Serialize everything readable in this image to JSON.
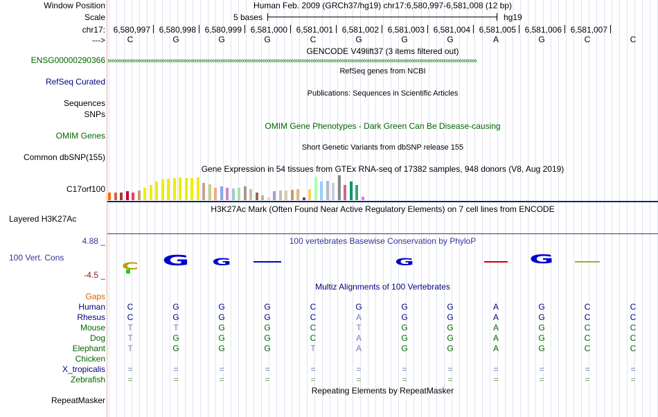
{
  "left_labels": {
    "window_position": "Window Position",
    "scale": "Scale",
    "chrom": "chr17:",
    "arrow": "--->",
    "ensg": "ENSG00000290366",
    "refseq": "RefSeq Curated",
    "sequences": "Sequences",
    "snps": "SNPs",
    "omim": "OMIM Genes",
    "dbsnp": "Common dbSNP(155)",
    "gene": "C17orf100",
    "h3k27ac": "Layered H3K27Ac",
    "cons_max": "4.88 _",
    "cons_name": "100 Vert. Cons",
    "cons_min": "-4.5 _",
    "gaps": "Gaps",
    "species": [
      {
        "name": "Human",
        "color": "#000080"
      },
      {
        "name": "Rhesus",
        "color": "#000080"
      },
      {
        "name": "Mouse",
        "color": "#006400"
      },
      {
        "name": "Dog",
        "color": "#006400"
      },
      {
        "name": "Elephant",
        "color": "#006400"
      },
      {
        "name": "Chicken",
        "color": "#006400"
      },
      {
        "name": "X_tropicalis",
        "color": "#000080"
      },
      {
        "name": "Zebrafish",
        "color": "#006400"
      }
    ],
    "repeatmasker": "RepeatMasker"
  },
  "header": {
    "window_title": "Human Feb. 2009 (GRCh37/hg19)   chr17:6,580,997-6,581,008 (12 bp)",
    "scale_text": "5 bases",
    "assembly": "hg19",
    "positions": [
      "6,580,997",
      "6,580,998",
      "6,580,999",
      "6,581,000",
      "6,581,001",
      "6,581,002",
      "6,581,003",
      "6,581,004",
      "6,581,005",
      "6,581,006",
      "6,581,007"
    ],
    "bases": [
      "C",
      "G",
      "G",
      "G",
      "C",
      "G",
      "G",
      "G",
      "A",
      "G",
      "C",
      "C"
    ]
  },
  "tracks": {
    "gencode": "GENCODE V49lift37 (3 items filtered out)",
    "refseq": "RefSeq genes from NCBI",
    "publications": "Publications: Sequences in Scientific Articles",
    "omim": "OMIM Gene Phenotypes - Dark Green Can Be Disease-causing",
    "dbsnp": "Short Genetic Variants from dbSNP release 155",
    "gtex": "Gene Expression in 54 tissues from GTEx RNA-seq of 17382 samples, 948 donors (V8, Aug 2019)",
    "h3k27ac": "H3K27Ac Mark (Often Found Near Active Regulatory Elements) on 7 cell lines from ENCODE",
    "phylop": "100 vertebrates Basewise Conservation by PhyloP",
    "multiz": "Multiz Alignments of 100 Vertebrates",
    "repeats": "Repeating Elements by RepeatMasker"
  },
  "gtex_levels": [
    0.3,
    0.3,
    0.3,
    0.35,
    0.3,
    0.4,
    0.5,
    0.6,
    0.75,
    0.82,
    0.85,
    0.88,
    0.92,
    0.9,
    0.88,
    0.92,
    0.7,
    0.65,
    0.5,
    0.55,
    0.5,
    0.48,
    0.5,
    0.55,
    0.45,
    0.3,
    0.2,
    0.1,
    0.35,
    0.38,
    0.4,
    0.42,
    0.45,
    0.1,
    0.45,
    0.95,
    0.75,
    0.78,
    0.7,
    1.0,
    0.6,
    0.75,
    0.6,
    0.15
  ],
  "gtex_colors": [
    "#ff6600",
    "#cc6633",
    "#aa3333",
    "#cc0033",
    "#ff3366",
    "#cc9966",
    "#eeee00",
    "#eeee00",
    "#eeee00",
    "#eeee00",
    "#eeee00",
    "#eeee00",
    "#eeee00",
    "#eeee00",
    "#eeee00",
    "#eeee00",
    "#d0a090",
    "#cccc88",
    "#eeaa88",
    "#88aaee",
    "#cc88cc",
    "#99cccc",
    "#aaddaa",
    "#aa9988",
    "#ccbbaa",
    "#996655",
    "#ccaa99",
    "#eeccbb",
    "#aa99cc",
    "#ccbbaa",
    "#ddccaa",
    "#cc9966",
    "#ddbb88",
    "#663399",
    "#ffcc66",
    "#aaffaa",
    "#99ccff",
    "#aabbcc",
    "#ccccdd",
    "#888888",
    "#cc6699",
    "#009966",
    "#33aa66",
    "#ff66ff"
  ],
  "alignment": {
    "Human": {
      "bases": [
        "C",
        "G",
        "G",
        "G",
        "C",
        "G",
        "G",
        "G",
        "A",
        "G",
        "C",
        "C"
      ],
      "color": "#000080"
    },
    "Rhesus": {
      "bases": [
        "C",
        "G",
        "G",
        "G",
        "C",
        "A",
        "G",
        "G",
        "A",
        "G",
        "C",
        "C"
      ],
      "color": "#000080"
    },
    "Mouse": {
      "bases": [
        "T",
        "T",
        "G",
        "G",
        "C",
        "T",
        "G",
        "G",
        "A",
        "G",
        "C",
        "C"
      ],
      "color": "#006400"
    },
    "Dog": {
      "bases": [
        "T",
        "G",
        "G",
        "G",
        "C",
        "A",
        "G",
        "G",
        "A",
        "G",
        "C",
        "C"
      ],
      "color": "#006400"
    },
    "Elephant": {
      "bases": [
        "T",
        "G",
        "G",
        "G",
        "T",
        "A",
        "G",
        "G",
        "A",
        "G",
        "C",
        "C"
      ],
      "color": "#006400"
    },
    "X_tropicalis": {
      "bases": [
        "=",
        "=",
        "=",
        "=",
        "=",
        "=",
        "=",
        "=",
        "=",
        "=",
        "=",
        "="
      ],
      "color": "#7777bb"
    },
    "Zebrafish": {
      "bases": [
        "=",
        "=",
        "=",
        "=",
        "=",
        "=",
        "=",
        "=",
        "=",
        "=",
        "=",
        "="
      ],
      "color": "#6a9a6a"
    }
  },
  "colors": {
    "ensg": "#006400",
    "refseq": "#000080",
    "omim": "#006400",
    "phylop": "#333399",
    "multiz": "#000080",
    "gaps": "#cc6600",
    "cons_scale": "#333399",
    "cons_min": "#7a1c1c",
    "h3k27ac_line": "#3b3b6b"
  }
}
